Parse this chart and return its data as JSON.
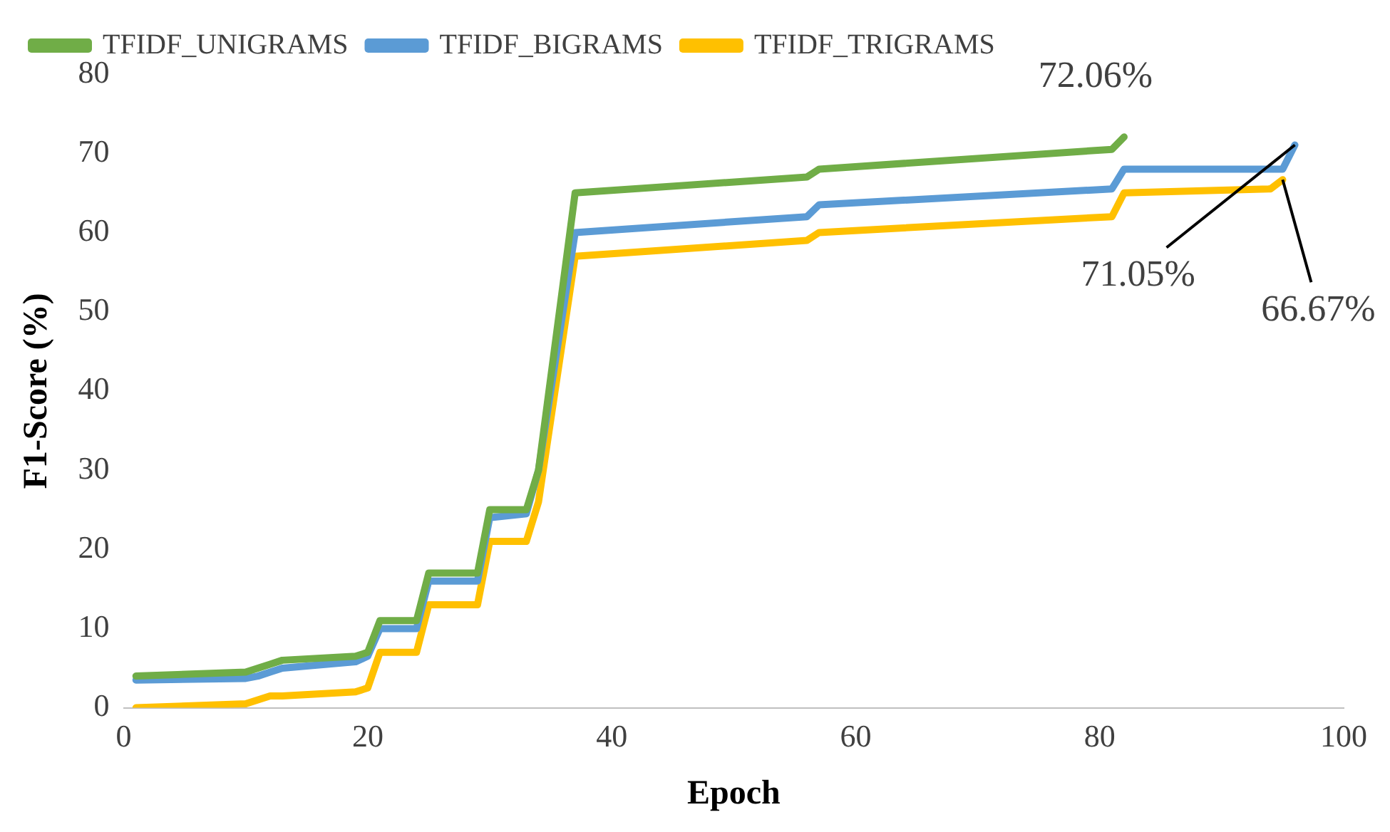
{
  "chart_data": {
    "type": "line",
    "xlabel": "Epoch",
    "ylabel": "F1-Score (%)",
    "xlim": [
      0,
      100
    ],
    "xticks": [
      0,
      20,
      40,
      60,
      80,
      100
    ],
    "ylim": [
      0,
      80
    ],
    "yticks": [
      0,
      10,
      20,
      30,
      40,
      50,
      60,
      70,
      80
    ],
    "grid": false,
    "legend": "top",
    "marker": "none",
    "line_style": "solid",
    "series": [
      {
        "name": "TFIDF_UNIGRAMS",
        "color": "#70ad47",
        "x": [
          1,
          10,
          11,
          12,
          13,
          19,
          20,
          21,
          24,
          25,
          29,
          30,
          33,
          34,
          37,
          56,
          57,
          81,
          82
        ],
        "values": [
          4,
          4.5,
          5,
          5.5,
          6,
          6.5,
          7,
          11,
          11,
          17,
          17,
          25,
          25,
          30,
          65,
          67,
          68,
          70.5,
          72.06
        ]
      },
      {
        "name": "TFIDF_BIGRAMS",
        "color": "#5b9bd5",
        "x": [
          1,
          10,
          11,
          12,
          13,
          19,
          20,
          21,
          24,
          25,
          29,
          30,
          33,
          34,
          37,
          56,
          57,
          81,
          82,
          95,
          96
        ],
        "values": [
          3.5,
          3.7,
          4,
          4.5,
          5,
          5.8,
          6.5,
          10,
          10,
          16,
          16,
          24,
          24.5,
          30,
          60,
          62,
          63.5,
          65.5,
          68,
          68,
          71.05
        ]
      },
      {
        "name": "TFIDF_TRIGRAMS",
        "color": "#ffc000",
        "x": [
          1,
          10,
          11,
          12,
          13,
          19,
          20,
          21,
          24,
          25,
          29,
          30,
          33,
          34,
          37,
          56,
          57,
          81,
          82,
          94,
          95
        ],
        "values": [
          0,
          0.5,
          1,
          1.5,
          1.5,
          2,
          2.5,
          7,
          7,
          13,
          13,
          21,
          21,
          26,
          57,
          59,
          60,
          62,
          65,
          65.5,
          66.67
        ]
      }
    ],
    "annotations": [
      {
        "text": "72.06%",
        "x": 82,
        "y": 72.06
      },
      {
        "text": "71.05%",
        "x": 96,
        "y": 71.05
      },
      {
        "text": "66.67%",
        "x": 95,
        "y": 66.67
      }
    ]
  }
}
